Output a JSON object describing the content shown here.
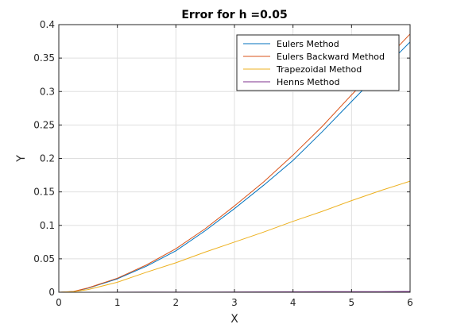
{
  "chart_data": {
    "type": "line",
    "title": "Error for h =0.05",
    "xlabel": "X",
    "ylabel": "Y",
    "xlim": [
      0,
      6
    ],
    "ylim": [
      0,
      0.4
    ],
    "grid": true,
    "legend_position": "top-right",
    "x_ticks": [
      0,
      1,
      2,
      3,
      4,
      5,
      6
    ],
    "x_tick_labels": [
      "0",
      "1",
      "2",
      "3",
      "4",
      "5",
      "6"
    ],
    "y_ticks": [
      0,
      0.05,
      0.1,
      0.15,
      0.2,
      0.25,
      0.3,
      0.35,
      0.4
    ],
    "y_tick_labels": [
      "0",
      "0.05",
      "0.1",
      "0.15",
      "0.2",
      "0.25",
      "0.3",
      "0.35",
      "0.4"
    ],
    "x": [
      0,
      0.25,
      0.5,
      1,
      1.5,
      2,
      2.5,
      3,
      3.5,
      4,
      4.5,
      5,
      5.5,
      6
    ],
    "series": [
      {
        "name": "Eulers Method",
        "color": "#0072BD",
        "values": [
          0,
          0.001,
          0.006,
          0.02,
          0.039,
          0.062,
          0.092,
          0.125,
          0.16,
          0.197,
          0.24,
          0.285,
          0.33,
          0.374
        ]
      },
      {
        "name": "Eulers Backward Method",
        "color": "#D95319",
        "values": [
          0,
          0.0012,
          0.0065,
          0.021,
          0.041,
          0.065,
          0.095,
          0.129,
          0.165,
          0.205,
          0.248,
          0.295,
          0.34,
          0.386
        ]
      },
      {
        "name": "Trapezoidal Method",
        "color": "#EDB120",
        "values": [
          0,
          0.0008,
          0.004,
          0.015,
          0.03,
          0.044,
          0.06,
          0.075,
          0.09,
          0.106,
          0.121,
          0.137,
          0.152,
          0.166
        ]
      },
      {
        "name": "Henns Method",
        "color": "#7E2F8E",
        "values": [
          0,
          0,
          0,
          0.0001,
          0.0002,
          0.0003,
          0.0004,
          0.0005,
          0.0006,
          0.0007,
          0.0008,
          0.0009,
          0.001,
          0.0012
        ]
      }
    ]
  }
}
